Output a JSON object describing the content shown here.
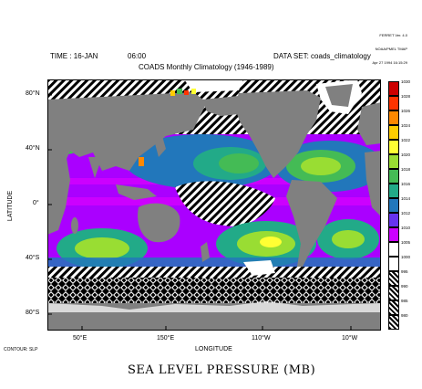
{
  "header": {
    "time_label": "TIME : 16-JAN",
    "time_value": "06:00",
    "dataset_label": "DATA SET: coads_climatology",
    "subtitle": "COADS Monthly Climatology (1946-1989)",
    "stamp_lines": [
      "FERRET Ver. 4.0",
      "NOAA/PMEL TMAP",
      "Apr 27 1994 16:15:29"
    ]
  },
  "axes": {
    "ylabel": "LATITUDE",
    "xlabel": "LONGITUDE",
    "y_ticks": [
      "80°N",
      "40°N",
      "0°",
      "40°S",
      "80°S"
    ],
    "x_ticks": [
      "50°E",
      "150°E",
      "110°W",
      "10°W"
    ]
  },
  "footer": {
    "contour_label": "CONTOUR: SLP",
    "caption": "SEA LEVEL PRESSURE (MB)"
  },
  "colorbar": {
    "levels": [
      "1030",
      "1028",
      "1026",
      "1024",
      "1022",
      "1020",
      "1018",
      "1016",
      "1014",
      "1012",
      "1010",
      "1005",
      "1000",
      "995",
      "990",
      "985",
      "980"
    ],
    "colors": [
      "#cc0000",
      "#ff3300",
      "#ff8800",
      "#ffcc00",
      "#ffff33",
      "#99dd33",
      "#44bb55",
      "#22aa88",
      "#2277bb",
      "#6633ee",
      "#cc00ff",
      "#ffffff",
      "#ffffff",
      "#000000",
      "#ffffff",
      "#000000",
      "#ffffff"
    ]
  },
  "map_colors": {
    "land": "#808080",
    "ice": "#ffffff"
  }
}
